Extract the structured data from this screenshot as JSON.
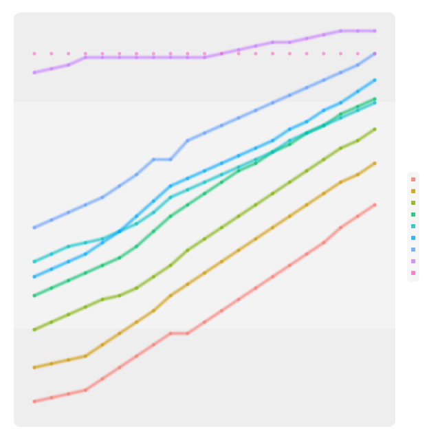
{
  "chart_data": {
    "type": "line",
    "title": "",
    "xlabel": "",
    "ylabel": "",
    "grid": true,
    "legend_position": "right",
    "x": [
      0,
      1,
      2,
      3,
      4,
      5,
      6,
      7,
      8,
      9,
      10,
      11,
      12,
      13,
      14,
      15,
      16,
      17,
      18,
      19,
      20
    ],
    "xlim": [
      0,
      20
    ],
    "ylim": [
      0,
      100
    ],
    "series": [
      {
        "color": "#f8766d",
        "values": [
          2,
          3,
          4,
          5,
          8,
          11,
          14,
          17,
          20,
          20,
          23,
          26,
          29,
          32,
          35,
          38,
          41,
          44,
          48,
          51,
          54
        ]
      },
      {
        "color": "#cd9600",
        "values": [
          11,
          12,
          13,
          14,
          17,
          20,
          23,
          26,
          30,
          33,
          36,
          39,
          42,
          45,
          48,
          51,
          54,
          57,
          60,
          62,
          65
        ]
      },
      {
        "color": "#7cae00",
        "values": [
          21,
          23,
          25,
          27,
          29,
          30,
          32,
          35,
          38,
          42,
          45,
          48,
          51,
          54,
          57,
          60,
          63,
          66,
          69,
          71,
          74
        ]
      },
      {
        "color": "#00be67",
        "values": [
          30,
          32,
          34,
          36,
          38,
          40,
          43,
          47,
          51,
          54,
          57,
          60,
          63,
          65,
          68,
          70,
          73,
          75,
          78,
          80,
          82
        ]
      },
      {
        "color": "#00bfc4",
        "values": [
          39,
          41,
          43,
          44,
          45,
          47,
          49,
          52,
          56,
          58,
          60,
          62,
          64,
          66,
          68,
          71,
          73,
          75,
          77,
          79,
          81
        ]
      },
      {
        "color": "#00a9ff",
        "values": [
          35,
          37,
          39,
          41,
          44,
          47,
          51,
          55,
          59,
          61,
          63,
          65,
          67,
          69,
          71,
          74,
          76,
          79,
          81,
          84,
          87
        ]
      },
      {
        "color": "#619cff",
        "values": [
          48,
          50,
          52,
          54,
          56,
          59,
          62,
          66,
          66,
          71,
          73,
          75,
          77,
          79,
          81,
          83,
          85,
          87,
          89,
          91,
          94
        ]
      },
      {
        "color": "#c77cff",
        "values": [
          89,
          90,
          91,
          93,
          93,
          93,
          93,
          93,
          93,
          93,
          93,
          94,
          95,
          96,
          97,
          97,
          98,
          99,
          100,
          100,
          100
        ]
      },
      {
        "color": "#ff61c3",
        "values": [
          94,
          94,
          94,
          94,
          94,
          94,
          94,
          94,
          94,
          94,
          94,
          94,
          94,
          94,
          94,
          94,
          94,
          94,
          94,
          94,
          94
        ]
      }
    ]
  }
}
